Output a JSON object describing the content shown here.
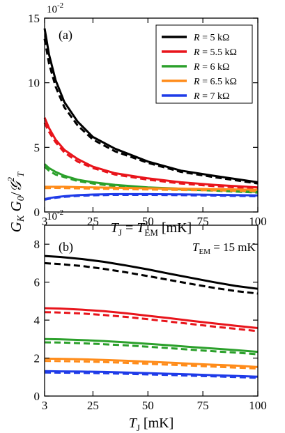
{
  "ylabel": {
    "main": "G",
    "sub_k": "K",
    "mid": " G",
    "sub_0": "0",
    "slash": "/",
    "cal": "𝒢",
    "sup": "2",
    "sub_t": "T"
  },
  "chart_data": [
    {
      "type": "line",
      "panel_label": "(a)",
      "xlabel": {
        "t": "T",
        "sub_j": "J",
        "eq": " = ",
        "t2": "T",
        "sub_em": "EM",
        "unit": " [mK]"
      },
      "ylabel": "",
      "scale_label": "10",
      "scale_exp": "-2",
      "xlim": [
        3,
        100
      ],
      "ylim": [
        0,
        15
      ],
      "xticks": [
        3,
        25,
        50,
        75,
        100
      ],
      "yticks": [
        0,
        5,
        10,
        15
      ],
      "legend_placement": "top-right",
      "x": [
        3,
        5,
        8,
        12,
        18,
        25,
        35,
        50,
        65,
        80,
        100
      ],
      "series": [
        {
          "name": "R = 5 kΩ",
          "color": "#000000",
          "solid": [
            14.2,
            12.2,
            10.2,
            8.5,
            7.0,
            5.8,
            4.9,
            3.9,
            3.2,
            2.8,
            2.3
          ],
          "dashed": [
            13.4,
            11.5,
            9.7,
            8.1,
            6.7,
            5.6,
            4.7,
            3.8,
            3.1,
            2.7,
            2.2
          ]
        },
        {
          "name": "R = 5.5 kΩ",
          "color": "#e8141b",
          "solid": [
            7.3,
            6.5,
            5.6,
            4.8,
            4.1,
            3.5,
            3.0,
            2.6,
            2.3,
            2.1,
            1.9
          ],
          "dashed": [
            6.9,
            6.2,
            5.4,
            4.6,
            3.9,
            3.4,
            2.9,
            2.5,
            2.2,
            2.0,
            1.8
          ]
        },
        {
          "name": "R = 6 kΩ",
          "color": "#2ba02b",
          "solid": [
            3.7,
            3.4,
            3.1,
            2.8,
            2.5,
            2.3,
            2.1,
            1.9,
            1.8,
            1.7,
            1.55
          ],
          "dashed": [
            3.5,
            3.2,
            2.9,
            2.7,
            2.4,
            2.2,
            2.0,
            1.85,
            1.75,
            1.65,
            1.5
          ]
        },
        {
          "name": "R = 6.5 kΩ",
          "color": "#ff8c1a",
          "solid": [
            1.95,
            1.95,
            1.95,
            1.95,
            1.92,
            1.9,
            1.87,
            1.83,
            1.8,
            1.77,
            1.72
          ],
          "dashed": [
            1.85,
            1.85,
            1.86,
            1.85,
            1.83,
            1.81,
            1.78,
            1.74,
            1.7,
            1.67,
            1.62
          ]
        },
        {
          "name": "R = 7 kΩ",
          "color": "#1f3be8",
          "solid": [
            1.0,
            1.07,
            1.15,
            1.22,
            1.3,
            1.35,
            1.38,
            1.38,
            1.36,
            1.33,
            1.28
          ],
          "dashed": [
            0.95,
            1.02,
            1.1,
            1.17,
            1.24,
            1.29,
            1.32,
            1.32,
            1.3,
            1.27,
            1.22
          ]
        }
      ]
    },
    {
      "type": "line",
      "panel_label": "(b)",
      "annotation": {
        "t": "T",
        "sub_em": "EM",
        "rest": " = 15 mK"
      },
      "xlabel": {
        "t": "T",
        "sub_j": "J",
        "unit": " [mK]"
      },
      "ylabel": "",
      "scale_label": "10",
      "scale_exp": "-2",
      "xlim": [
        3,
        100
      ],
      "ylim": [
        0,
        9
      ],
      "xticks": [
        3,
        25,
        50,
        75,
        100
      ],
      "yticks": [
        0,
        2,
        4,
        6,
        8
      ],
      "x": [
        3,
        10,
        20,
        30,
        40,
        50,
        60,
        70,
        80,
        90,
        100
      ],
      "series": [
        {
          "name": "R = 5 kΩ",
          "color": "#000000",
          "solid": [
            7.38,
            7.33,
            7.22,
            7.07,
            6.88,
            6.67,
            6.44,
            6.22,
            6.0,
            5.8,
            5.65
          ],
          "dashed": [
            7.0,
            6.95,
            6.85,
            6.7,
            6.52,
            6.32,
            6.11,
            5.9,
            5.7,
            5.53,
            5.4
          ]
        },
        {
          "name": "R = 5.5 kΩ",
          "color": "#e8141b",
          "solid": [
            4.63,
            4.61,
            4.55,
            4.47,
            4.36,
            4.23,
            4.1,
            3.96,
            3.83,
            3.7,
            3.58
          ],
          "dashed": [
            4.42,
            4.4,
            4.35,
            4.27,
            4.17,
            4.05,
            3.92,
            3.79,
            3.66,
            3.54,
            3.42
          ]
        },
        {
          "name": "R = 6 kΩ",
          "color": "#2ba02b",
          "solid": [
            3.0,
            2.99,
            2.95,
            2.9,
            2.83,
            2.75,
            2.67,
            2.58,
            2.5,
            2.42,
            2.33
          ],
          "dashed": [
            2.83,
            2.82,
            2.78,
            2.73,
            2.67,
            2.6,
            2.52,
            2.44,
            2.36,
            2.29,
            2.2
          ]
        },
        {
          "name": "R = 6.5 kΩ",
          "color": "#ff8c1a",
          "solid": [
            1.97,
            1.96,
            1.94,
            1.9,
            1.86,
            1.81,
            1.76,
            1.7,
            1.65,
            1.6,
            1.53
          ],
          "dashed": [
            1.85,
            1.84,
            1.82,
            1.79,
            1.75,
            1.7,
            1.65,
            1.6,
            1.55,
            1.5,
            1.45
          ]
        },
        {
          "name": "R = 7 kΩ",
          "color": "#1f3be8",
          "solid": [
            1.31,
            1.3,
            1.29,
            1.27,
            1.24,
            1.21,
            1.17,
            1.14,
            1.1,
            1.06,
            1.02
          ],
          "dashed": [
            1.24,
            1.23,
            1.22,
            1.2,
            1.17,
            1.14,
            1.11,
            1.07,
            1.04,
            1.0,
            0.96
          ]
        }
      ]
    }
  ]
}
